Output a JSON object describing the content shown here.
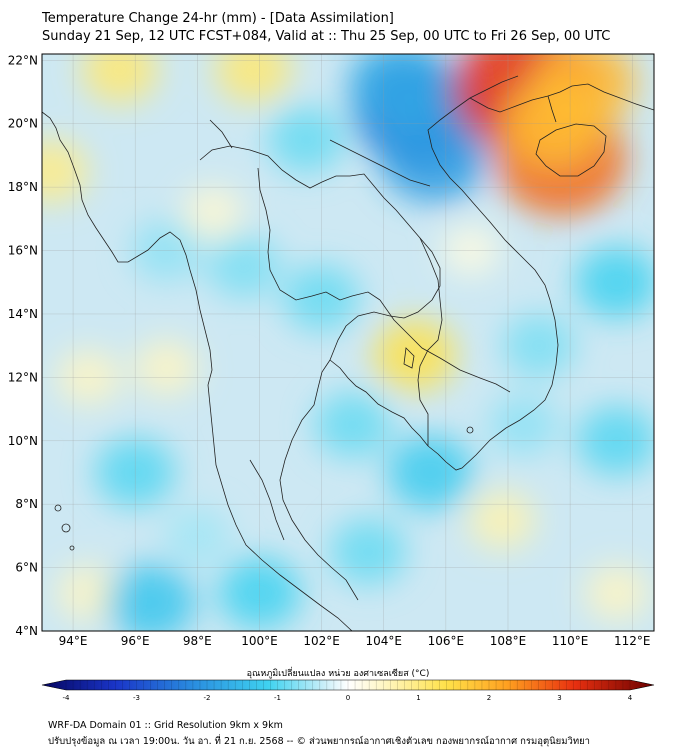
{
  "title_line1": "Temperature Change 24-hr (mm) - [Data Assimilation]",
  "title_line2": "Sunday 21 Sep, 12 UTC FCST+084, Valid at :: Thu 25 Sep, 00 UTC to Fri 26 Sep, 00 UTC",
  "lat_labels": [
    "4°N",
    "6°N",
    "8°N",
    "10°N",
    "12°N",
    "14°N",
    "16°N",
    "18°N",
    "20°N",
    "22°N"
  ],
  "lat_values": [
    4,
    6,
    8,
    10,
    12,
    14,
    16,
    18,
    20,
    22
  ],
  "lon_labels": [
    "94°E",
    "96°E",
    "98°E",
    "100°E",
    "102°E",
    "104°E",
    "106°E",
    "108°E",
    "110°E",
    "112°E"
  ],
  "lon_values": [
    94,
    96,
    98,
    100,
    102,
    104,
    106,
    108,
    110,
    112
  ],
  "extent": {
    "lon_min": 93.0,
    "lon_max": 112.7,
    "lat_min": 4.0,
    "lat_max": 22.2
  },
  "colorbar": {
    "title": "อุณหภูมิเปลี่ยนแปลง หน่วย องศาเซลเซียส (°C)",
    "min": -4,
    "max": 4,
    "tick_values": [
      -4,
      -3,
      -2,
      -1,
      0,
      1,
      2,
      3,
      4
    ],
    "tick_labels": [
      "-4",
      "-3",
      "-2",
      "-1",
      "0",
      "1",
      "2",
      "3",
      "4"
    ]
  },
  "footer_line1": "WRF-DA Domain 01 :: Grid Resolution 9km x 9km",
  "footer_line2": "ปรับปรุงข้อมูล ณ เวลา 19:00น. วัน อา. ที่ 21 ก.ย. 2568 -- © ส่วนพยากรณ์อากาศเชิงตัวเลข กองพยากรณ์อากาศ กรมอุตุนิยมวิทยา",
  "field_anomalies": [
    {
      "lon": 105.1,
      "lat": 20.4,
      "value": -2.4
    },
    {
      "lon": 105.6,
      "lat": 19.0,
      "value": -1.8
    },
    {
      "lon": 104.5,
      "lat": 21.2,
      "value": -1.6
    },
    {
      "lon": 108.6,
      "lat": 21.1,
      "value": 3.0
    },
    {
      "lon": 109.7,
      "lat": 18.9,
      "value": 2.5
    },
    {
      "lon": 110.5,
      "lat": 21.3,
      "value": 1.6
    },
    {
      "lon": 109.5,
      "lat": 20.0,
      "value": 1.5
    },
    {
      "lon": 95.5,
      "lat": 21.7,
      "value": 0.8
    },
    {
      "lon": 99.8,
      "lat": 21.7,
      "value": 0.8
    },
    {
      "lon": 93.3,
      "lat": 18.5,
      "value": 0.7
    },
    {
      "lon": 105.0,
      "lat": 12.7,
      "value": 1.0
    },
    {
      "lon": 98.5,
      "lat": 17.2,
      "value": 0.3
    },
    {
      "lon": 94.5,
      "lat": 12.0,
      "value": 0.4
    },
    {
      "lon": 97.0,
      "lat": 12.3,
      "value": 0.4
    },
    {
      "lon": 94.5,
      "lat": 5.2,
      "value": 0.4
    },
    {
      "lon": 107.8,
      "lat": 7.5,
      "value": 0.5
    },
    {
      "lon": 111.5,
      "lat": 5.2,
      "value": 0.4
    },
    {
      "lon": 106.8,
      "lat": 16.0,
      "value": 0.2
    },
    {
      "lon": 96.5,
      "lat": 4.9,
      "value": -1.2
    },
    {
      "lon": 100.0,
      "lat": 5.2,
      "value": -1.0
    },
    {
      "lon": 105.5,
      "lat": 9.0,
      "value": -1.1
    },
    {
      "lon": 111.5,
      "lat": 15.0,
      "value": -1.0
    },
    {
      "lon": 111.5,
      "lat": 10.0,
      "value": -0.9
    },
    {
      "lon": 96.0,
      "lat": 9.0,
      "value": -0.9
    },
    {
      "lon": 102.0,
      "lat": 14.5,
      "value": -0.8
    },
    {
      "lon": 99.5,
      "lat": 15.5,
      "value": -0.7
    },
    {
      "lon": 103.0,
      "lat": 10.5,
      "value": -0.8
    },
    {
      "lon": 109.0,
      "lat": 13.0,
      "value": -0.7
    },
    {
      "lon": 101.5,
      "lat": 19.5,
      "value": -0.8
    },
    {
      "lon": 97.0,
      "lat": 16.0,
      "value": -0.6
    },
    {
      "lon": 103.5,
      "lat": 6.5,
      "value": -0.8
    },
    {
      "lon": 108.5,
      "lat": 10.5,
      "value": -0.6
    },
    {
      "lon": 98.0,
      "lat": 7.0,
      "value": -0.5
    }
  ]
}
